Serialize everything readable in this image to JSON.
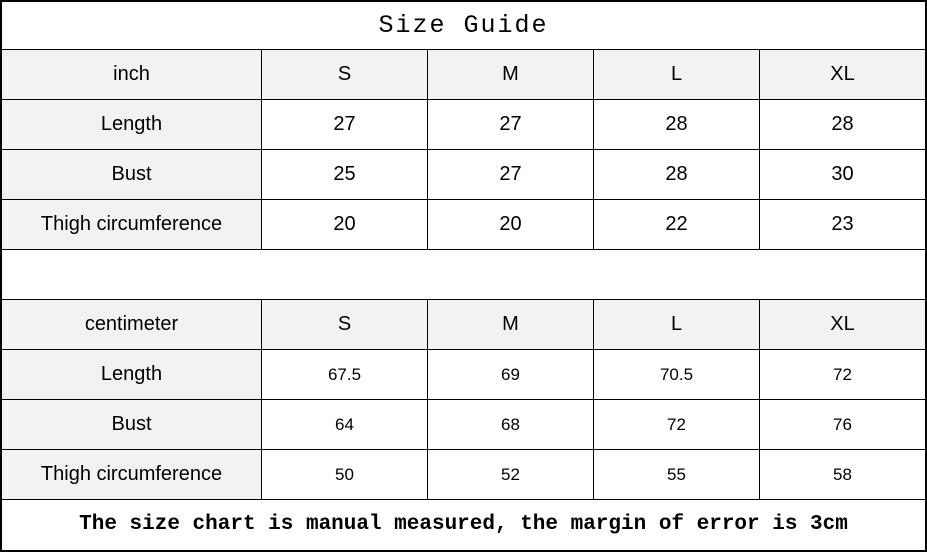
{
  "title": "Size Guide",
  "inch_table": {
    "header": [
      "inch",
      "S",
      "M",
      "L",
      "XL"
    ],
    "rows": [
      [
        "Length",
        "27",
        "27",
        "28",
        "28"
      ],
      [
        "Bust",
        "25",
        "27",
        "28",
        "30"
      ],
      [
        "Thigh circumference",
        "20",
        "20",
        "22",
        "23"
      ]
    ]
  },
  "cm_table": {
    "header": [
      "centimeter",
      "S",
      "M",
      "L",
      "XL"
    ],
    "rows": [
      [
        "Length",
        "67.5",
        "69",
        "70.5",
        "72"
      ],
      [
        "Bust",
        "64",
        "68",
        "72",
        "76"
      ],
      [
        "Thigh circumference",
        "50",
        "52",
        "55",
        "58"
      ]
    ]
  },
  "footer": "The size chart is manual measured, the margin of error is 3cm",
  "colors": {
    "label_bg": "#f2f2f2",
    "border": "#000000"
  }
}
